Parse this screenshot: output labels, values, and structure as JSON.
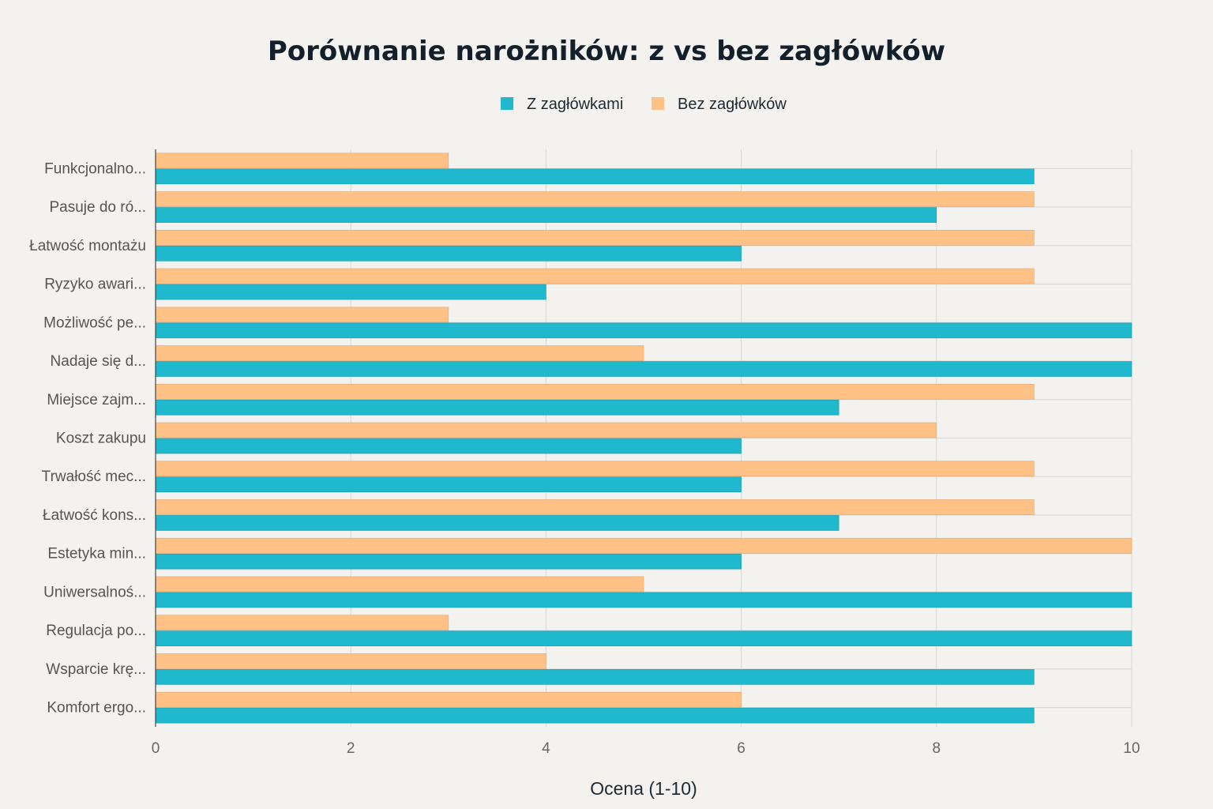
{
  "chart_data": {
    "type": "bar",
    "orientation": "horizontal",
    "title": "Porównanie narożników: z vs bez zagłówków",
    "xlabel": "Ocena (1-10)",
    "ylabel": "",
    "xlim": [
      0,
      10
    ],
    "x_ticks": [
      "0",
      "2",
      "4",
      "6",
      "8",
      "10"
    ],
    "grid": true,
    "legend_position": "top-center",
    "categories": [
      "Funkcjonalno...",
      "Pasuje do ró...",
      "Łatwość montażu",
      "Ryzyko awari...",
      "Możliwość pe...",
      "Nadaje się d...",
      "Miejsce zajm...",
      "Koszt zakupu",
      "Trwałość mec...",
      "Łatwość kons...",
      "Estetyka min...",
      "Uniwersalnoś...",
      "Regulacja po...",
      "Wsparcie krę...",
      "Komfort ergo..."
    ],
    "series": [
      {
        "name": "Z zagłówkami",
        "color": "#1fb8cd",
        "values": [
          9,
          8,
          6,
          4,
          10,
          10,
          7,
          6,
          6,
          7,
          6,
          10,
          10,
          9,
          9
        ]
      },
      {
        "name": "Bez zagłówków",
        "color": "#ffc185",
        "values": [
          3,
          9,
          9,
          9,
          3,
          5,
          9,
          8,
          9,
          9,
          10,
          5,
          3,
          4,
          6
        ]
      }
    ]
  }
}
